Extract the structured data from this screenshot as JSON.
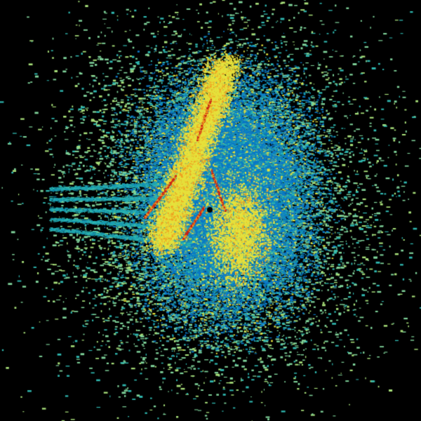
{
  "background": "#000000",
  "palette": {
    "low": "#7fd39a",
    "low_alt": "#a8e07a",
    "mid": "#0a78c8",
    "mid_alt": "#1496b4",
    "cyan": "#2fb8b0",
    "high": "#e6e23c",
    "peak": "#f0a020",
    "max": "#c81e14"
  },
  "layers": [
    "sparse-outer-speckle",
    "dense-blue-core",
    "yellow-streaks",
    "red-ridge-lines",
    "left-rays"
  ]
}
